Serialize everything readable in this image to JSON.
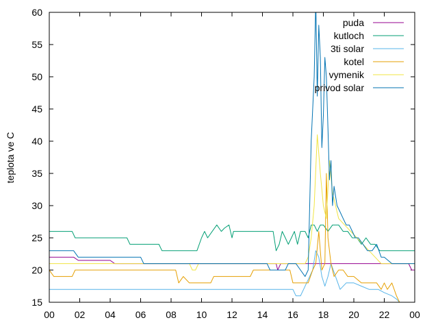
{
  "chart_data": {
    "type": "line",
    "title": "",
    "xlabel": "",
    "ylabel": "teplota ve C",
    "xlim": [
      0,
      24
    ],
    "ylim": [
      15,
      60
    ],
    "x_ticks": [
      "00",
      "02",
      "04",
      "06",
      "08",
      "10",
      "12",
      "14",
      "16",
      "18",
      "20",
      "22",
      "00"
    ],
    "y_ticks": [
      15,
      20,
      25,
      30,
      35,
      40,
      45,
      50,
      55,
      60
    ],
    "grid": false,
    "legend_position": "top-right",
    "x_unit": "hours",
    "series": [
      {
        "name": "puda",
        "color": "#94008f",
        "x": [
          0,
          1.6,
          1.9,
          4.0,
          4.3,
          14.9,
          15.0,
          15.2,
          23.6,
          23.8,
          24
        ],
        "y": [
          22,
          22,
          21.5,
          21.5,
          21,
          21,
          20,
          21,
          21,
          20,
          20
        ]
      },
      {
        "name": "kutloch",
        "color": "#009e73",
        "x": [
          0,
          1.5,
          1.7,
          5.1,
          5.3,
          7.2,
          7.4,
          9.7,
          10.0,
          10.2,
          10.4,
          10.7,
          11.0,
          11.3,
          11.5,
          11.8,
          12.0,
          12.1,
          12.2,
          12.5,
          13.0,
          14.7,
          14.9,
          15.1,
          15.3,
          15.5,
          15.7,
          15.9,
          16.1,
          16.3,
          16.5,
          16.8,
          17.0,
          17.2,
          17.4,
          17.6,
          17.8,
          18.0,
          18.3,
          18.6,
          19.0,
          19.3,
          19.6,
          19.9,
          20.2,
          20.5,
          20.8,
          21.1,
          21.4,
          21.7,
          22.0,
          23.5,
          24
        ],
        "y": [
          26,
          26,
          25,
          25,
          24,
          24,
          23,
          23,
          25,
          26,
          25,
          26,
          27,
          26,
          26.5,
          27,
          25,
          26,
          26,
          26,
          26,
          26,
          23,
          24,
          26,
          25,
          24,
          25,
          26,
          24,
          26,
          26,
          25,
          27,
          27,
          26,
          27,
          27,
          26,
          27,
          27,
          26,
          26,
          25,
          25,
          24,
          25,
          24,
          24,
          23,
          23,
          23,
          23
        ]
      },
      {
        "name": "3ti solar",
        "color": "#56b4e9",
        "x": [
          0,
          16.0,
          16.2,
          16.5,
          16.7,
          16.9,
          17.1,
          17.3,
          17.5,
          17.7,
          17.9,
          18.1,
          18.3,
          18.5,
          18.8,
          19.1,
          19.5,
          20.0,
          20.5,
          21.0,
          21.6,
          22.0,
          22.5,
          22.8,
          23.0,
          23.1
        ],
        "y": [
          17,
          17,
          16,
          16,
          17,
          18,
          19,
          20,
          23,
          22,
          19,
          17.5,
          19,
          21,
          19,
          17,
          18,
          18,
          17.5,
          17,
          17,
          16.5,
          16,
          15.5,
          15,
          15
        ]
      },
      {
        "name": "kotel",
        "color": "#e69f00",
        "x": [
          0,
          0.3,
          1.0,
          1.5,
          1.7,
          8.3,
          8.5,
          8.8,
          9.2,
          9.5,
          10.6,
          10.8,
          13.2,
          13.4,
          15.8,
          16.0,
          17.0,
          17.3,
          17.5,
          17.7,
          17.9,
          18.1,
          18.2,
          18.3,
          18.5,
          18.7,
          19.0,
          19.3,
          19.6,
          20.0,
          20.5,
          21.0,
          21.5,
          21.8,
          22.0,
          22.2,
          22.5,
          22.8,
          23.0
        ],
        "y": [
          20,
          19,
          19,
          19,
          20,
          20,
          18,
          19,
          18,
          18,
          18,
          19,
          19,
          20,
          20,
          18,
          18,
          20,
          21,
          26,
          20,
          21,
          35,
          25,
          21,
          19,
          20,
          20,
          19,
          19,
          18,
          18,
          18,
          17,
          18,
          17,
          18,
          16,
          15
        ]
      },
      {
        "name": "vymenik",
        "color": "#f0e442",
        "x": [
          0,
          9.2,
          9.4,
          9.6,
          9.8,
          16.8,
          17.0,
          17.2,
          17.4,
          17.6,
          17.8,
          18.0,
          18.2,
          18.4,
          18.6,
          19.0,
          19.4,
          19.8,
          20.2,
          20.6,
          21.0,
          21.4,
          21.8,
          22.2,
          23.0,
          24
        ],
        "y": [
          21,
          21,
          20,
          20,
          21,
          21,
          22,
          25,
          30,
          41,
          35,
          30,
          28,
          37,
          32,
          28,
          27,
          26,
          25,
          24,
          23,
          22,
          21,
          21,
          21,
          21
        ]
      },
      {
        "name": "privod solar",
        "color": "#0072b2",
        "x": [
          0,
          1.6,
          1.9,
          6.0,
          6.2,
          14.3,
          14.5,
          15.5,
          15.7,
          16.2,
          16.5,
          16.8,
          17.0,
          17.2,
          17.4,
          17.5,
          17.6,
          17.7,
          17.8,
          17.9,
          18.0,
          18.1,
          18.2,
          18.3,
          18.4,
          18.5,
          18.6,
          18.7,
          18.9,
          19.1,
          19.3,
          19.5,
          19.7,
          19.9,
          20.1,
          20.3,
          20.6,
          20.9,
          21.2,
          21.5,
          21.8,
          22.0,
          22.5,
          23.0,
          23.5,
          24
        ],
        "y": [
          23,
          23,
          22,
          22,
          21,
          21,
          20,
          20,
          21,
          21,
          20,
          19,
          20,
          40,
          50,
          62,
          47,
          58,
          53,
          39,
          44,
          53,
          50,
          42,
          34,
          37,
          30,
          33,
          30,
          29,
          28,
          27,
          27,
          26,
          25,
          25,
          24,
          23,
          23,
          24,
          22,
          22,
          21,
          21,
          21,
          21
        ]
      }
    ]
  }
}
